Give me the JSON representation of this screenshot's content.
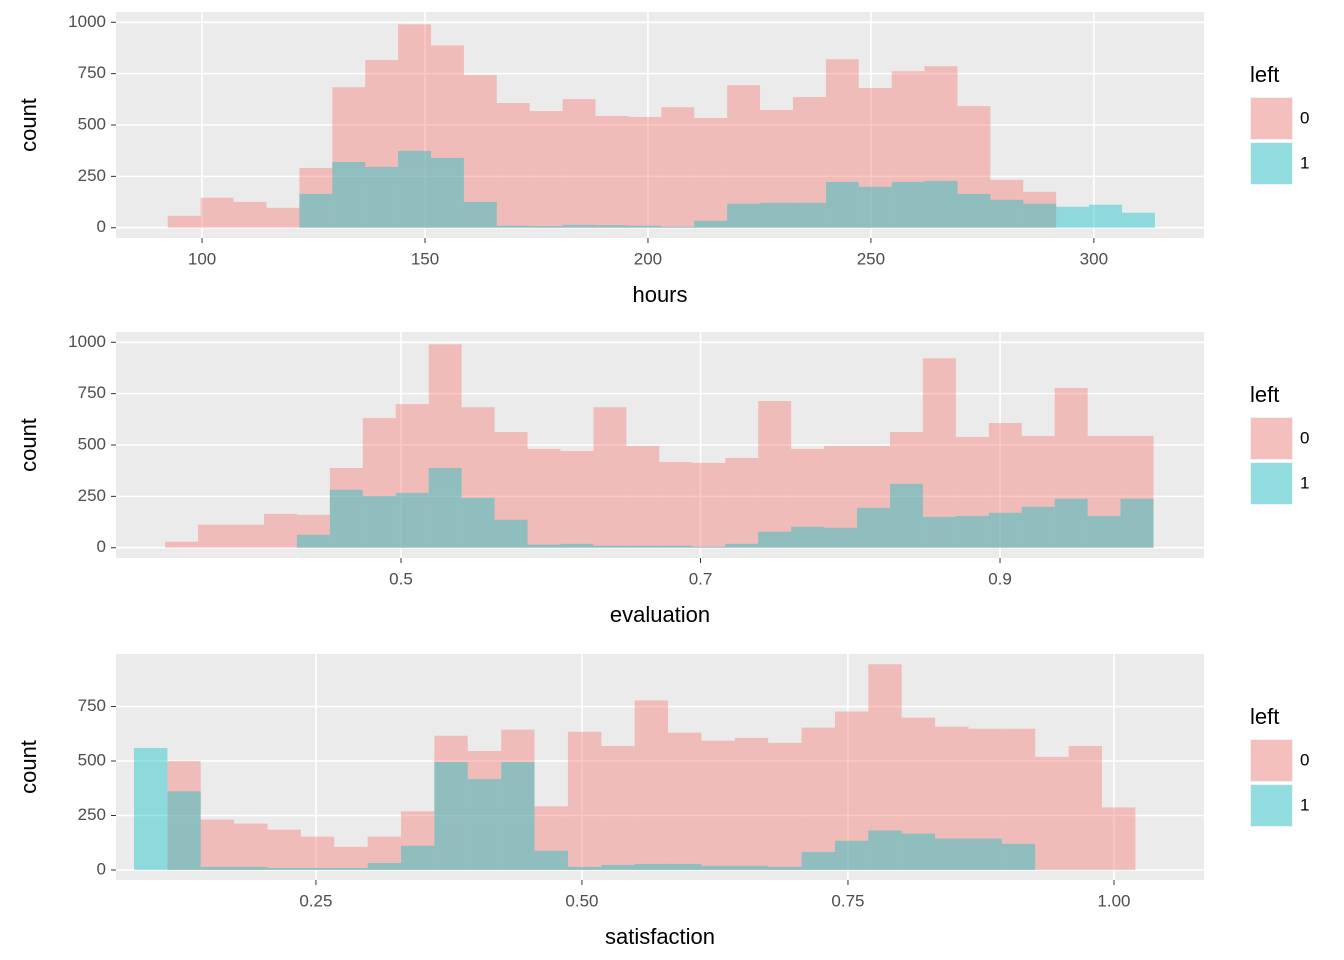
{
  "chart_data": [
    {
      "type": "histogram",
      "x_label": "hours",
      "y_label": "count",
      "legend_title": "left",
      "grid": true,
      "bins": [
        92.31,
        99.69,
        107.07,
        114.45,
        121.83,
        129.21,
        136.59,
        143.97,
        151.34,
        158.72,
        166.1,
        173.48,
        180.86,
        188.24,
        195.62,
        203.0,
        210.38,
        217.76,
        225.14,
        232.52,
        239.9,
        247.28,
        254.66,
        262.03,
        269.41,
        276.79,
        284.17,
        291.55,
        298.93,
        306.31,
        313.69
      ],
      "series": [
        {
          "name": "0",
          "color": "#F8766D",
          "values": [
            58,
            146,
            126,
            97,
            291,
            684,
            816,
            990,
            888,
            743,
            607,
            568,
            626,
            544,
            539,
            587,
            534,
            694,
            573,
            636,
            820,
            680,
            762,
            786,
            592,
            233,
            175,
            0,
            0,
            0
          ]
        },
        {
          "name": "1",
          "color": "#00BFC4",
          "values": [
            0,
            0,
            0,
            0,
            165,
            320,
            296,
            374,
            340,
            126,
            10,
            8,
            14,
            12,
            10,
            5,
            34,
            117,
            121,
            121,
            223,
            199,
            223,
            228,
            165,
            136,
            117,
            102,
            112,
            73
          ]
        }
      ],
      "xlim": [
        80.7,
        324.7
      ],
      "xticks": [
        100,
        150,
        200,
        250,
        300
      ],
      "ylim": [
        -50,
        1050
      ],
      "yticks": [
        0,
        250,
        500,
        750,
        1000
      ]
    },
    {
      "type": "histogram",
      "x_label": "evaluation",
      "y_label": "count",
      "legend_title": "left",
      "grid": true,
      "bins": [
        0.3425,
        0.3645,
        0.3865,
        0.4085,
        0.4305,
        0.4525,
        0.4745,
        0.4965,
        0.5185,
        0.5405,
        0.5625,
        0.5845,
        0.6065,
        0.6285,
        0.6505,
        0.6725,
        0.6945,
        0.7165,
        0.7385,
        0.7605,
        0.7825,
        0.8045,
        0.8265,
        0.8485,
        0.8705,
        0.8925,
        0.9145,
        0.9365,
        0.9585,
        0.9805,
        1.0025
      ],
      "series": [
        {
          "name": "0",
          "color": "#F8766D",
          "values": [
            29,
            112,
            112,
            165,
            160,
            388,
            631,
            699,
            990,
            684,
            563,
            481,
            471,
            684,
            495,
            417,
            413,
            437,
            714,
            481,
            495,
            495,
            563,
            922,
            539,
            607,
            544,
            777,
            544,
            544
          ]
        },
        {
          "name": "1",
          "color": "#00BFC4",
          "values": [
            0,
            0,
            0,
            0,
            63,
            282,
            252,
            267,
            388,
            243,
            136,
            15,
            19,
            10,
            10,
            10,
            5,
            19,
            78,
            102,
            97,
            194,
            311,
            150,
            155,
            170,
            199,
            238,
            155,
            238
          ]
        }
      ],
      "xlim": [
        0.3097,
        1.0362
      ],
      "xticks": [
        0.5,
        0.7,
        0.9
      ],
      "ylim": [
        -50,
        1050
      ],
      "yticks": [
        0,
        250,
        500,
        750,
        1000
      ]
    },
    {
      "type": "histogram",
      "x_label": "satisfaction",
      "y_label": "count",
      "legend_title": "left",
      "grid": true,
      "bins": [
        0.079,
        0.1104,
        0.1417,
        0.1731,
        0.2045,
        0.2358,
        0.2672,
        0.2986,
        0.33,
        0.3613,
        0.3927,
        0.4241,
        0.4554,
        0.4868,
        0.5182,
        0.5496,
        0.5809,
        0.6123,
        0.6437,
        0.675,
        0.7064,
        0.7378,
        0.7691,
        0.8005,
        0.8319,
        0.8633,
        0.8946,
        0.926,
        0.9574,
        0.9887,
        1.0201
      ],
      "series": [
        {
          "name": "0",
          "color": "#F8766D",
          "values": [
            0,
            500,
            231,
            213,
            185,
            153,
            106,
            153,
            269,
            616,
            546,
            644,
            292,
            634,
            569,
            778,
            630,
            593,
            606,
            583,
            653,
            727,
            944,
            699,
            657,
            648,
            648,
            519,
            569,
            287
          ]
        },
        {
          "name": "1",
          "color": "#00BFC4",
          "values": [
            560,
            361,
            14,
            14,
            9,
            9,
            9,
            32,
            111,
            495,
            417,
            495,
            88,
            14,
            23,
            28,
            28,
            19,
            19,
            14,
            83,
            134,
            181,
            167,
            144,
            144,
            120,
            0,
            0,
            0
          ]
        }
      ],
      "xlim": [
        0.0621,
        1.0846
      ],
      "xticks": [
        0.25,
        {
          "value": 0.5,
          "label": "0.50"
        },
        0.75,
        {
          "value": 1,
          "label": "1.00"
        }
      ],
      "ylim": [
        -46,
        991
      ],
      "yticks": [
        0,
        250,
        500,
        750
      ]
    }
  ]
}
